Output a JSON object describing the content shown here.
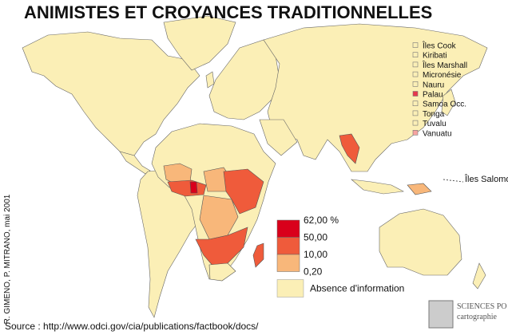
{
  "title": "ANIMISTES ET CROYANCES TRADITIONNELLES",
  "islands": [
    {
      "label": "Îles Cook",
      "color": "#fbefb6"
    },
    {
      "label": "Kiribati",
      "color": "#fbefb6"
    },
    {
      "label": "Îles Marshall",
      "color": "#fbefb6"
    },
    {
      "label": "Micronésie",
      "color": "#fbefb6"
    },
    {
      "label": "Nauru",
      "color": "#fbefb6"
    },
    {
      "label": "Palau",
      "color": "#e8384d"
    },
    {
      "label": "Samoa Occ.",
      "color": "#fbefb6"
    },
    {
      "label": "Tonga",
      "color": "#fbefb6"
    },
    {
      "label": "Tuvalu",
      "color": "#fbefb6"
    },
    {
      "label": "Vanuatu",
      "color": "#f6a3a0"
    }
  ],
  "annotation": "Îles Salomon",
  "legend": {
    "classes": [
      {
        "color": "#d9001b"
      },
      {
        "color": "#ef5b3b"
      },
      {
        "color": "#f8b77a"
      }
    ],
    "breaks": [
      "62,00 %",
      "50,00",
      "10,00",
      "0,20"
    ],
    "no_data": {
      "label": "Absence d'information",
      "color": "#fbefb6"
    }
  },
  "credit": "R. GIMENO, P. MITRANO, mai 2001",
  "source": "Source : http://www.odci.gov/cia/publications/factbook/docs/",
  "logo": {
    "line1": "SCIENCES PO",
    "line2": "cartographie"
  }
}
